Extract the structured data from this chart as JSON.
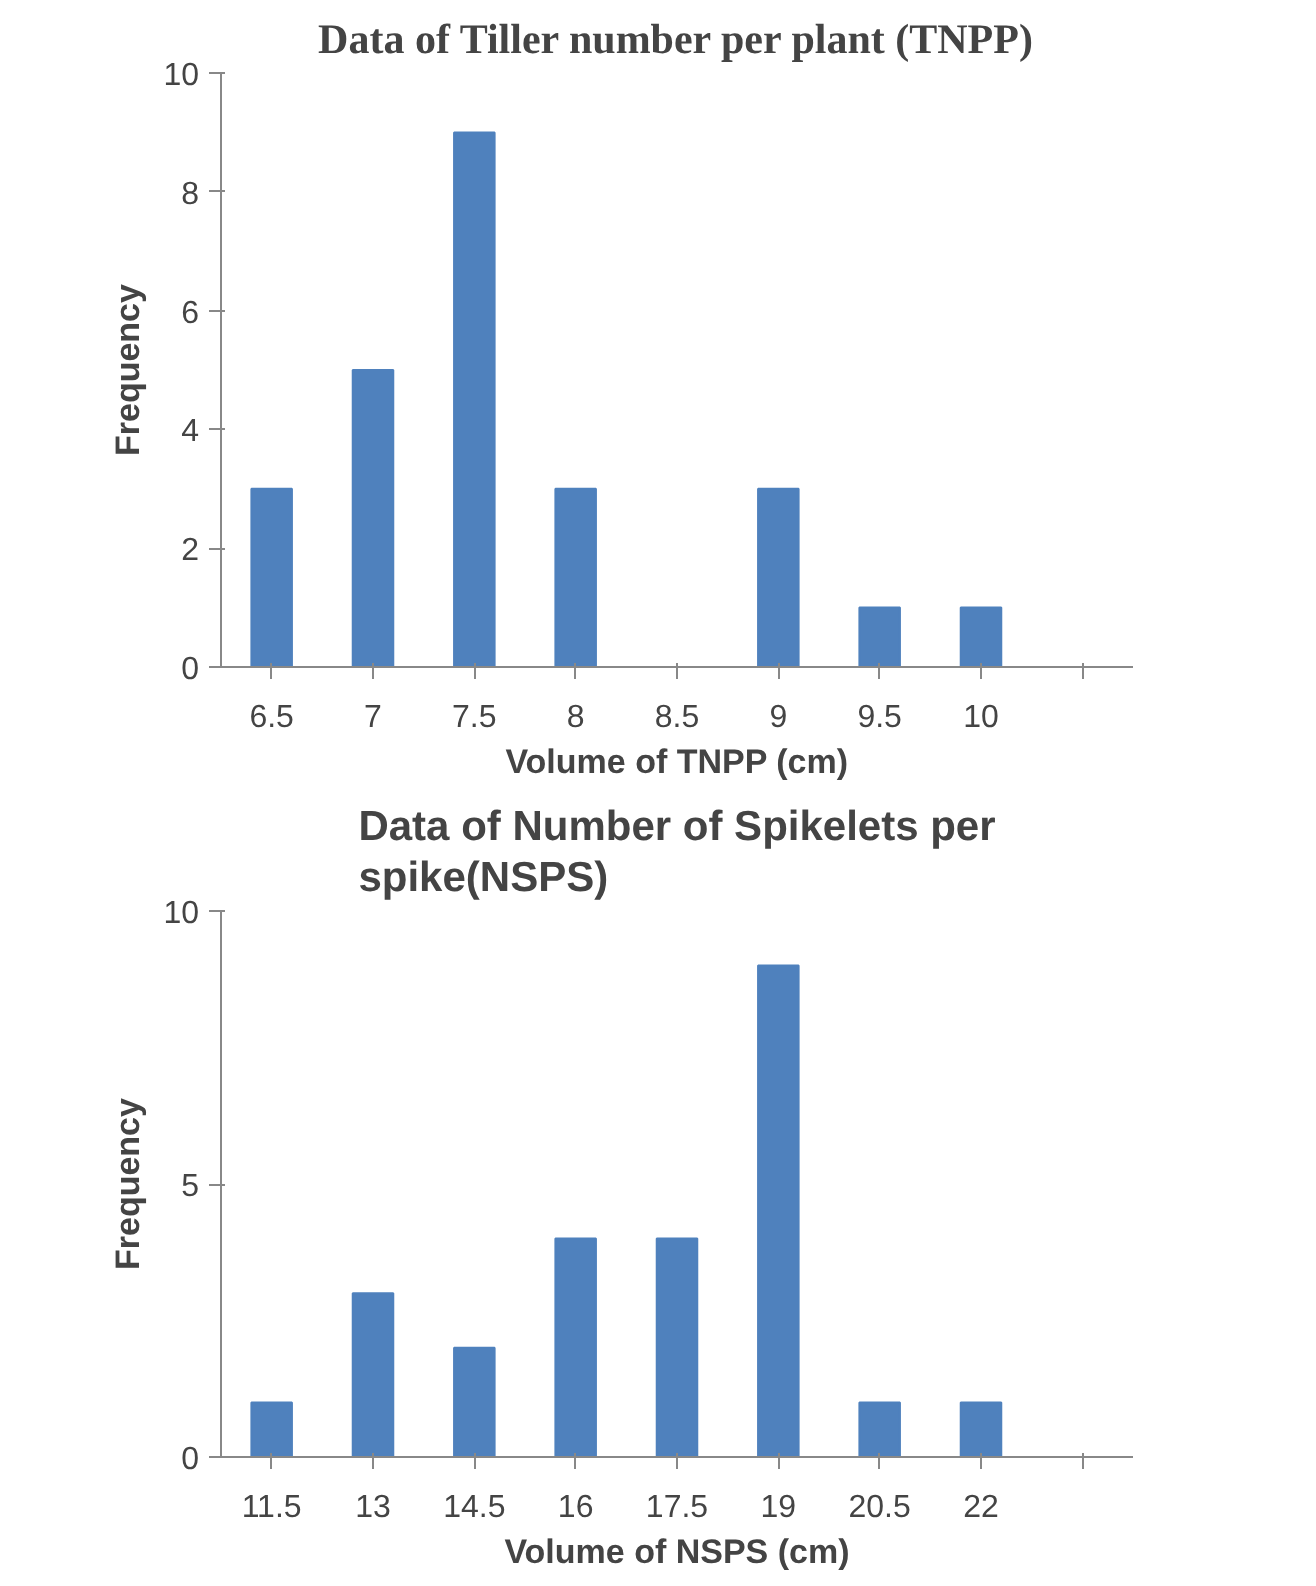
{
  "chart_data": [
    {
      "type": "bar",
      "title": "Data of Tiller number per plant (TNPP)",
      "xlabel": "Volume of TNPP (cm)",
      "ylabel": "Frequency",
      "categories": [
        "6.5",
        "7",
        "7.5",
        "8",
        "8.5",
        "9",
        "9.5",
        "10",
        null
      ],
      "values": [
        3,
        5,
        9,
        3,
        0,
        3,
        1,
        1,
        0
      ],
      "color": "#4f81bd",
      "ylim": [
        0,
        10
      ],
      "yticks": [
        0,
        2,
        4,
        6,
        8,
        10
      ],
      "grid": false
    },
    {
      "type": "bar",
      "title": "Data of Number of Spikelets per spike(NSPS)",
      "xlabel": "Volume of NSPS (cm)",
      "ylabel": "Frequency",
      "categories": [
        "11.5",
        "13",
        "14.5",
        "16",
        "17.5",
        "19",
        "20.5",
        "22",
        null
      ],
      "values": [
        1,
        3,
        2,
        4,
        4,
        9,
        1,
        1,
        0
      ],
      "color": "#4f81bd",
      "ylim": [
        0,
        10
      ],
      "yticks": [
        0,
        5,
        10
      ],
      "grid": false
    }
  ]
}
